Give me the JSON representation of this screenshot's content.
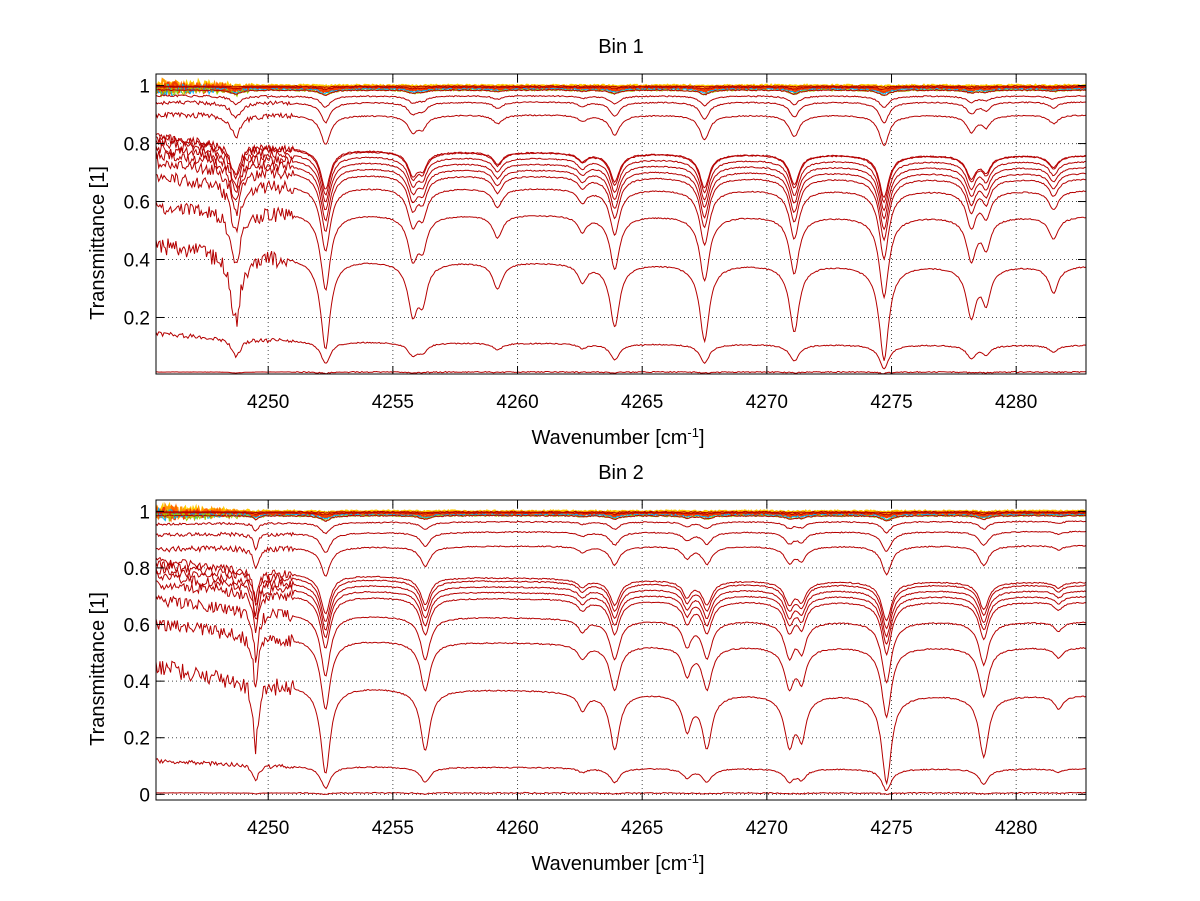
{
  "chart_data": [
    {
      "type": "line",
      "title": "Bin 1",
      "xlabel": "Wavenumber [cm",
      "xlabel_sup": "-1",
      "xlabel_end": "]",
      "ylabel": "Transmittance [1]",
      "xlim": [
        4245.5,
        4282.8
      ],
      "ylim": [
        0.005,
        1.04
      ],
      "xticks": [
        4250,
        4255,
        4260,
        4265,
        4270,
        4275,
        4280
      ],
      "yticks": [
        0.2,
        0.4,
        0.6,
        0.8,
        1
      ],
      "ytick_labels": [
        "0.2",
        "0.4",
        "0.6",
        "0.8",
        "1"
      ],
      "grid": true,
      "line_color": "#b50000",
      "top_colors": [
        "#ffcc00",
        "#ff9900",
        "#ff6600",
        "#f03c00",
        "#00b4ff",
        "#a0d000"
      ],
      "lines": [
        {
          "start": 0.998,
          "end": 0.998,
          "scale": 0.02
        },
        {
          "start": 0.995,
          "end": 0.995,
          "scale": 0.05
        },
        {
          "start": 0.985,
          "end": 0.985,
          "scale": 0.12
        },
        {
          "start": 0.965,
          "end": 0.965,
          "scale": 0.25
        },
        {
          "start": 0.94,
          "end": 0.945,
          "scale": 0.45
        },
        {
          "start": 0.9,
          "end": 0.9,
          "scale": 0.65
        },
        {
          "start": 0.85,
          "end": 0.76,
          "scale": 0.9
        },
        {
          "start": 0.84,
          "end": 0.76,
          "scale": 1.0
        },
        {
          "start": 0.83,
          "end": 0.74,
          "scale": 1.05
        },
        {
          "start": 0.81,
          "end": 0.72,
          "scale": 1.1
        },
        {
          "start": 0.79,
          "end": 0.7,
          "scale": 1.2
        },
        {
          "start": 0.76,
          "end": 0.68,
          "scale": 1.3
        },
        {
          "start": 0.7,
          "end": 0.64,
          "scale": 1.45
        },
        {
          "start": 0.6,
          "end": 0.55,
          "scale": 1.7
        },
        {
          "start": 0.48,
          "end": 0.38,
          "scale": 2.0
        },
        {
          "start": 0.16,
          "end": 0.105,
          "scale": 0.5
        },
        {
          "start": 0.012,
          "end": 0.012,
          "scale": 0.03
        }
      ],
      "lines_spectrum": [
        {
          "center": 4248.7,
          "depth": 0.3,
          "width": 0.25
        },
        {
          "center": 4252.3,
          "depth": 0.4,
          "width": 0.25
        },
        {
          "center": 4255.8,
          "depth": 0.22,
          "width": 0.25
        },
        {
          "center": 4256.2,
          "depth": 0.15,
          "width": 0.22
        },
        {
          "center": 4259.2,
          "depth": 0.12,
          "width": 0.25
        },
        {
          "center": 4262.6,
          "depth": 0.08,
          "width": 0.22
        },
        {
          "center": 4263.9,
          "depth": 0.28,
          "width": 0.25
        },
        {
          "center": 4267.5,
          "depth": 0.34,
          "width": 0.25
        },
        {
          "center": 4271.1,
          "depth": 0.3,
          "width": 0.25
        },
        {
          "center": 4274.7,
          "depth": 0.42,
          "width": 0.25
        },
        {
          "center": 4278.2,
          "depth": 0.22,
          "width": 0.25
        },
        {
          "center": 4278.8,
          "depth": 0.15,
          "width": 0.22
        },
        {
          "center": 4281.5,
          "depth": 0.12,
          "width": 0.25
        }
      ]
    },
    {
      "type": "line",
      "title": "Bin 2",
      "xlabel": "Wavenumber [cm",
      "xlabel_sup": "-1",
      "xlabel_end": "]",
      "ylabel": "Transmittance [1]",
      "xlim": [
        4245.5,
        4282.8
      ],
      "ylim": [
        -0.02,
        1.04
      ],
      "xticks": [
        4250,
        4255,
        4260,
        4265,
        4270,
        4275,
        4280
      ],
      "yticks": [
        0,
        0.2,
        0.4,
        0.6,
        0.8,
        1
      ],
      "ytick_labels": [
        "0",
        "0.2",
        "0.4",
        "0.6",
        "0.8",
        "1"
      ],
      "grid": true,
      "line_color": "#b50000",
      "top_colors": [
        "#ffcc00",
        "#ff9900",
        "#ff6600",
        "#f03c00",
        "#00b4ff",
        "#a0d000"
      ],
      "lines": [
        {
          "start": 0.998,
          "end": 0.998,
          "scale": 0.02
        },
        {
          "start": 0.995,
          "end": 0.995,
          "scale": 0.05
        },
        {
          "start": 0.985,
          "end": 0.985,
          "scale": 0.12
        },
        {
          "start": 0.95,
          "end": 0.965,
          "scale": 0.25
        },
        {
          "start": 0.91,
          "end": 0.93,
          "scale": 0.45
        },
        {
          "start": 0.86,
          "end": 0.88,
          "scale": 0.65
        },
        {
          "start": 0.86,
          "end": 0.75,
          "scale": 0.9
        },
        {
          "start": 0.84,
          "end": 0.74,
          "scale": 1.0
        },
        {
          "start": 0.82,
          "end": 0.72,
          "scale": 1.05
        },
        {
          "start": 0.8,
          "end": 0.7,
          "scale": 1.1
        },
        {
          "start": 0.77,
          "end": 0.68,
          "scale": 1.2
        },
        {
          "start": 0.72,
          "end": 0.61,
          "scale": 1.4
        },
        {
          "start": 0.64,
          "end": 0.52,
          "scale": 1.6
        },
        {
          "start": 0.49,
          "end": 0.35,
          "scale": 2.0
        },
        {
          "start": 0.13,
          "end": 0.09,
          "scale": 0.5
        },
        {
          "start": 0.005,
          "end": 0.005,
          "scale": 0.03
        }
      ],
      "lines_spectrum": [
        {
          "center": 4249.5,
          "depth": 0.3,
          "width": 0.12
        },
        {
          "center": 4252.3,
          "depth": 0.4,
          "width": 0.25
        },
        {
          "center": 4256.3,
          "depth": 0.28,
          "width": 0.25
        },
        {
          "center": 4262.6,
          "depth": 0.08,
          "width": 0.22
        },
        {
          "center": 4263.9,
          "depth": 0.26,
          "width": 0.25
        },
        {
          "center": 4266.8,
          "depth": 0.16,
          "width": 0.22
        },
        {
          "center": 4267.6,
          "depth": 0.24,
          "width": 0.25
        },
        {
          "center": 4270.9,
          "depth": 0.22,
          "width": 0.25
        },
        {
          "center": 4271.4,
          "depth": 0.18,
          "width": 0.22
        },
        {
          "center": 4274.8,
          "depth": 0.4,
          "width": 0.25
        },
        {
          "center": 4278.7,
          "depth": 0.28,
          "width": 0.25
        },
        {
          "center": 4281.7,
          "depth": 0.06,
          "width": 0.22
        }
      ]
    }
  ]
}
